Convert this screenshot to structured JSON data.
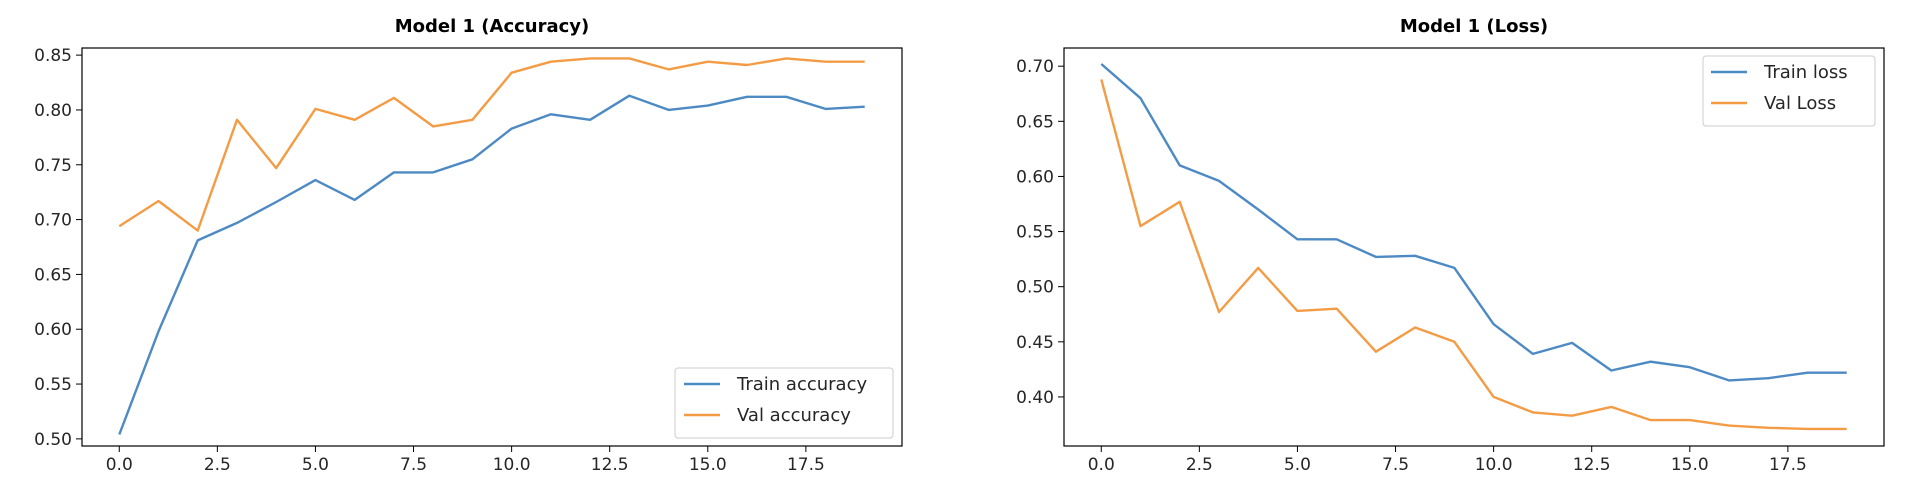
{
  "colors": {
    "train": "#4d8ac4",
    "val": "#f39c45",
    "axes": "#000000",
    "background": "#ffffff"
  },
  "chart_data": [
    {
      "type": "line",
      "title": "Model 1 (Accuracy)",
      "xlabel": "",
      "ylabel": "",
      "x": [
        0,
        1,
        2,
        3,
        4,
        5,
        6,
        7,
        8,
        9,
        10,
        11,
        12,
        13,
        14,
        15,
        16,
        17,
        18,
        19
      ],
      "xlim": [
        -0.95,
        19.95
      ],
      "ylim": [
        0.4935,
        0.8565
      ],
      "xticks": [
        0.0,
        2.5,
        5.0,
        7.5,
        10.0,
        12.5,
        15.0,
        17.5
      ],
      "xtick_labels": [
        "0.0",
        "2.5",
        "5.0",
        "7.5",
        "10.0",
        "12.5",
        "15.0",
        "17.5"
      ],
      "yticks": [
        0.5,
        0.55,
        0.6,
        0.65,
        0.7,
        0.75,
        0.8,
        0.85
      ],
      "ytick_labels": [
        "0.50",
        "0.55",
        "0.60",
        "0.65",
        "0.70",
        "0.75",
        "0.80",
        "0.85"
      ],
      "grid": false,
      "legend_position": "lower right",
      "series": [
        {
          "name": "Train accuracy",
          "color": "#4d8ac4",
          "values": [
            0.504,
            0.598,
            0.681,
            0.697,
            0.716,
            0.736,
            0.718,
            0.743,
            0.743,
            0.755,
            0.783,
            0.796,
            0.791,
            0.813,
            0.8,
            0.804,
            0.812,
            0.812,
            0.801,
            0.803
          ]
        },
        {
          "name": "Val accuracy",
          "color": "#f39c45",
          "values": [
            0.694,
            0.717,
            0.69,
            0.791,
            0.747,
            0.801,
            0.791,
            0.811,
            0.785,
            0.791,
            0.834,
            0.844,
            0.847,
            0.847,
            0.837,
            0.844,
            0.841,
            0.847,
            0.844,
            0.844
          ]
        }
      ]
    },
    {
      "type": "line",
      "title": "Model 1 (Loss)",
      "xlabel": "",
      "ylabel": "",
      "x": [
        0,
        1,
        2,
        3,
        4,
        5,
        6,
        7,
        8,
        9,
        10,
        11,
        12,
        13,
        14,
        15,
        16,
        17,
        18,
        19
      ],
      "xlim": [
        -0.95,
        19.95
      ],
      "ylim": [
        0.3555,
        0.7165
      ],
      "xticks": [
        0.0,
        2.5,
        5.0,
        7.5,
        10.0,
        12.5,
        15.0,
        17.5
      ],
      "xtick_labels": [
        "0.0",
        "2.5",
        "5.0",
        "7.5",
        "10.0",
        "12.5",
        "15.0",
        "17.5"
      ],
      "yticks": [
        0.4,
        0.45,
        0.5,
        0.55,
        0.6,
        0.65,
        0.7
      ],
      "ytick_labels": [
        "0.40",
        "0.45",
        "0.50",
        "0.55",
        "0.60",
        "0.65",
        "0.70"
      ],
      "grid": false,
      "legend_position": "upper right",
      "series": [
        {
          "name": "Train loss",
          "color": "#4d8ac4",
          "values": [
            0.702,
            0.671,
            0.61,
            0.596,
            0.57,
            0.543,
            0.543,
            0.527,
            0.528,
            0.517,
            0.466,
            0.439,
            0.449,
            0.424,
            0.432,
            0.427,
            0.415,
            0.417,
            0.422,
            0.422
          ]
        },
        {
          "name": "Val Loss",
          "color": "#f39c45",
          "values": [
            0.688,
            0.555,
            0.577,
            0.477,
            0.517,
            0.478,
            0.48,
            0.441,
            0.463,
            0.45,
            0.4,
            0.386,
            0.383,
            0.391,
            0.379,
            0.379,
            0.374,
            0.372,
            0.371,
            0.371
          ]
        }
      ]
    }
  ]
}
